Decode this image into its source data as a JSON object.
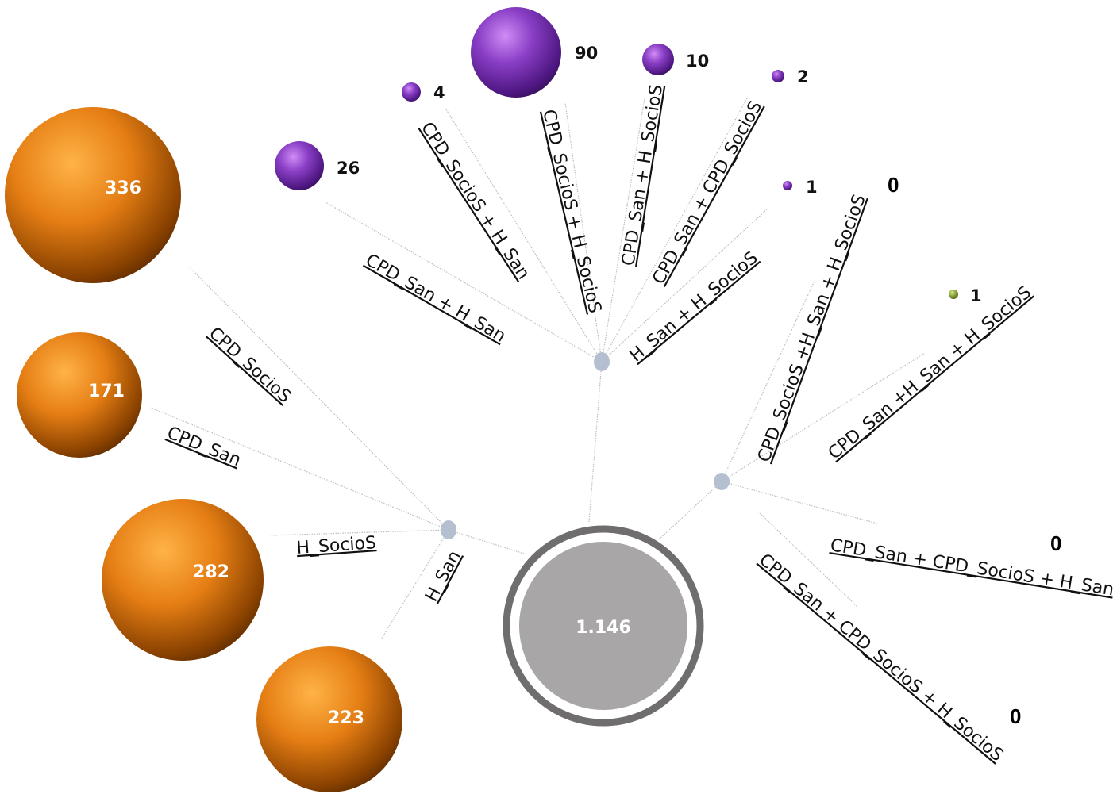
{
  "center": {
    "value": "1.146"
  },
  "singles": [
    {
      "label": "CPD_SocioS",
      "value": "336"
    },
    {
      "label": "CPD_San",
      "value": "171"
    },
    {
      "label": "H_SocioS",
      "value": "282"
    },
    {
      "label": "H_San",
      "value": "223"
    }
  ],
  "pairs": [
    {
      "label": "CPD_San + H_San",
      "value": "26"
    },
    {
      "label": "CPD_SocioS + H_San",
      "value": "4"
    },
    {
      "label": "CPD_SocioS + H_SocioS",
      "value": "90"
    },
    {
      "label": "CPD_San + H_SocioS",
      "value": "10"
    },
    {
      "label": "CPD_San + CPD_SocioS",
      "value": "2"
    },
    {
      "label": "H_San + H_SocioS",
      "value": "1"
    }
  ],
  "triples": [
    {
      "label": "CPD_SocioS +H_San + H_SocioS",
      "value": "0"
    },
    {
      "label": "CPD_San +H_San + H_SocioS",
      "value": "1"
    },
    {
      "label": "CPD_San + CPD_SocioS + H_San",
      "value": "0"
    },
    {
      "label": "CPD_San + CPD_SocioS + H_SocioS",
      "value": "0"
    }
  ],
  "colors": {
    "singles": "#e07a12",
    "pairs": "#7b2fb5",
    "triple_nonzero": "#8aa33c",
    "center_fill": "#a8a6a6",
    "center_ring": "#6f6d6d",
    "hub": "#b4bfd0"
  }
}
